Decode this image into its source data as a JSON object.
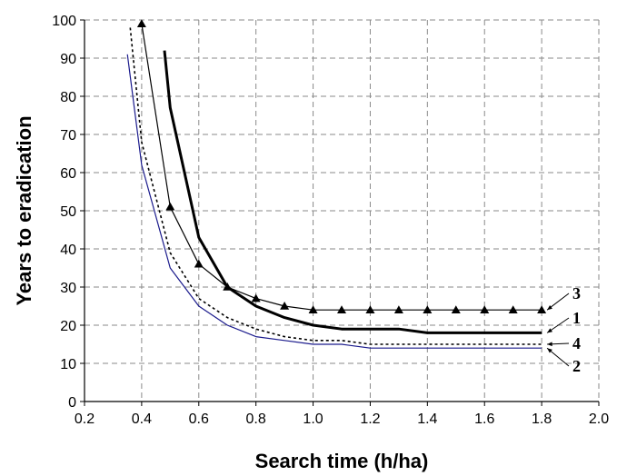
{
  "chart_data": {
    "type": "line",
    "title": "",
    "xlabel": "Search time (h/ha)",
    "ylabel": "Years to eradication",
    "xlim": [
      0.2,
      2.0
    ],
    "ylim": [
      0,
      100
    ],
    "xticks": [
      "0.2",
      "0.4",
      "0.6",
      "0.8",
      "1.0",
      "1.2",
      "1.4",
      "1.6",
      "1.8",
      "2.0"
    ],
    "yticks": [
      "0",
      "10",
      "20",
      "30",
      "40",
      "50",
      "60",
      "70",
      "80",
      "90",
      "100"
    ],
    "grid": "dashed",
    "legend": "inline-labels-right",
    "series": [
      {
        "label": "1",
        "style": "thick-solid",
        "color": "#000000",
        "x": [
          0.48,
          0.5,
          0.6,
          0.7,
          0.8,
          0.9,
          1.0,
          1.1,
          1.2,
          1.3,
          1.4,
          1.5,
          1.6,
          1.7,
          1.8
        ],
        "y": [
          92,
          77,
          43,
          30,
          25,
          22,
          20,
          19,
          19,
          19,
          18,
          18,
          18,
          18,
          18
        ]
      },
      {
        "label": "2",
        "style": "thin-solid",
        "color": "#1a1a8c",
        "x": [
          0.35,
          0.4,
          0.5,
          0.6,
          0.7,
          0.8,
          0.9,
          1.0,
          1.1,
          1.2,
          1.3,
          1.4,
          1.5,
          1.6,
          1.7,
          1.8
        ],
        "y": [
          91,
          62,
          35,
          25,
          20,
          17,
          16,
          15,
          15,
          14,
          14,
          14,
          14,
          14,
          14,
          14
        ]
      },
      {
        "label": "3",
        "style": "thin-solid-triangles",
        "color": "#000000",
        "x": [
          0.4,
          0.5,
          0.6,
          0.7,
          0.8,
          0.9,
          1.0,
          1.1,
          1.2,
          1.3,
          1.4,
          1.5,
          1.6,
          1.7,
          1.8
        ],
        "y": [
          99,
          51,
          36,
          30,
          27,
          25,
          24,
          24,
          24,
          24,
          24,
          24,
          24,
          24,
          24
        ]
      },
      {
        "label": "4",
        "style": "dotted",
        "color": "#000000",
        "x": [
          0.36,
          0.4,
          0.5,
          0.6,
          0.7,
          0.8,
          0.9,
          1.0,
          1.1,
          1.2,
          1.3,
          1.4,
          1.5,
          1.6,
          1.7,
          1.8
        ],
        "y": [
          98,
          68,
          39,
          27,
          22,
          19,
          17,
          16,
          16,
          15,
          15,
          15,
          15,
          15,
          15,
          15
        ]
      }
    ]
  }
}
